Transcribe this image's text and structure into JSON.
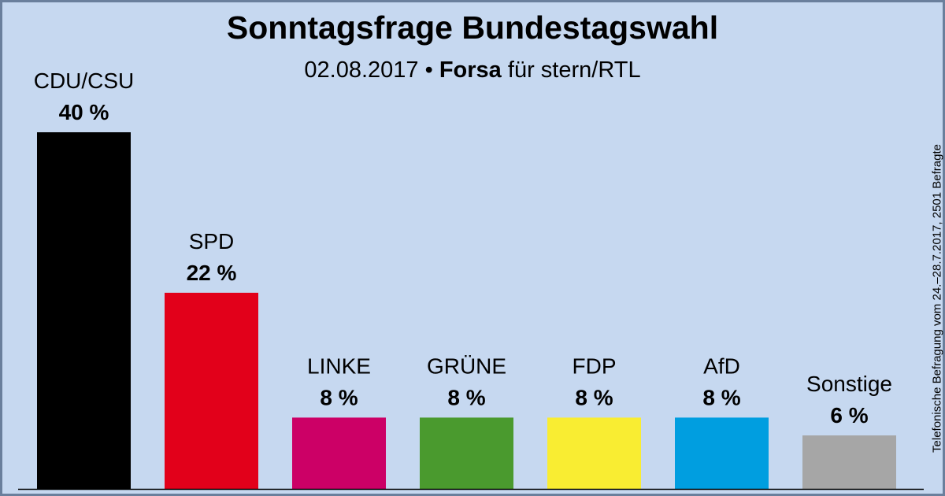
{
  "chart_data": {
    "type": "bar",
    "title": "Sonntagsfrage Bundestagswahl",
    "subtitle": {
      "date": "02.08.2017",
      "separator": "•",
      "publisher": "Forsa",
      "client": "für stern/RTL"
    },
    "source_note": "Telefonische Befragung vom 24.–28.7.2017, 2501 Befragte",
    "categories": [
      "CDU/CSU",
      "SPD",
      "LINKE",
      "GRÜNE",
      "FDP",
      "AfD",
      "Sonstige"
    ],
    "values": [
      40,
      22,
      8,
      8,
      8,
      8,
      6
    ],
    "value_labels": [
      "40 %",
      "22 %",
      "8 %",
      "8 %",
      "8 %",
      "8 %",
      "6 %"
    ],
    "colors": [
      "#000000",
      "#e2001a",
      "#cc0066",
      "#4a9a2e",
      "#f9ed32",
      "#009ee0",
      "#a6a6a6"
    ],
    "ylim": [
      0,
      40
    ],
    "grid": false,
    "legend": "none"
  }
}
